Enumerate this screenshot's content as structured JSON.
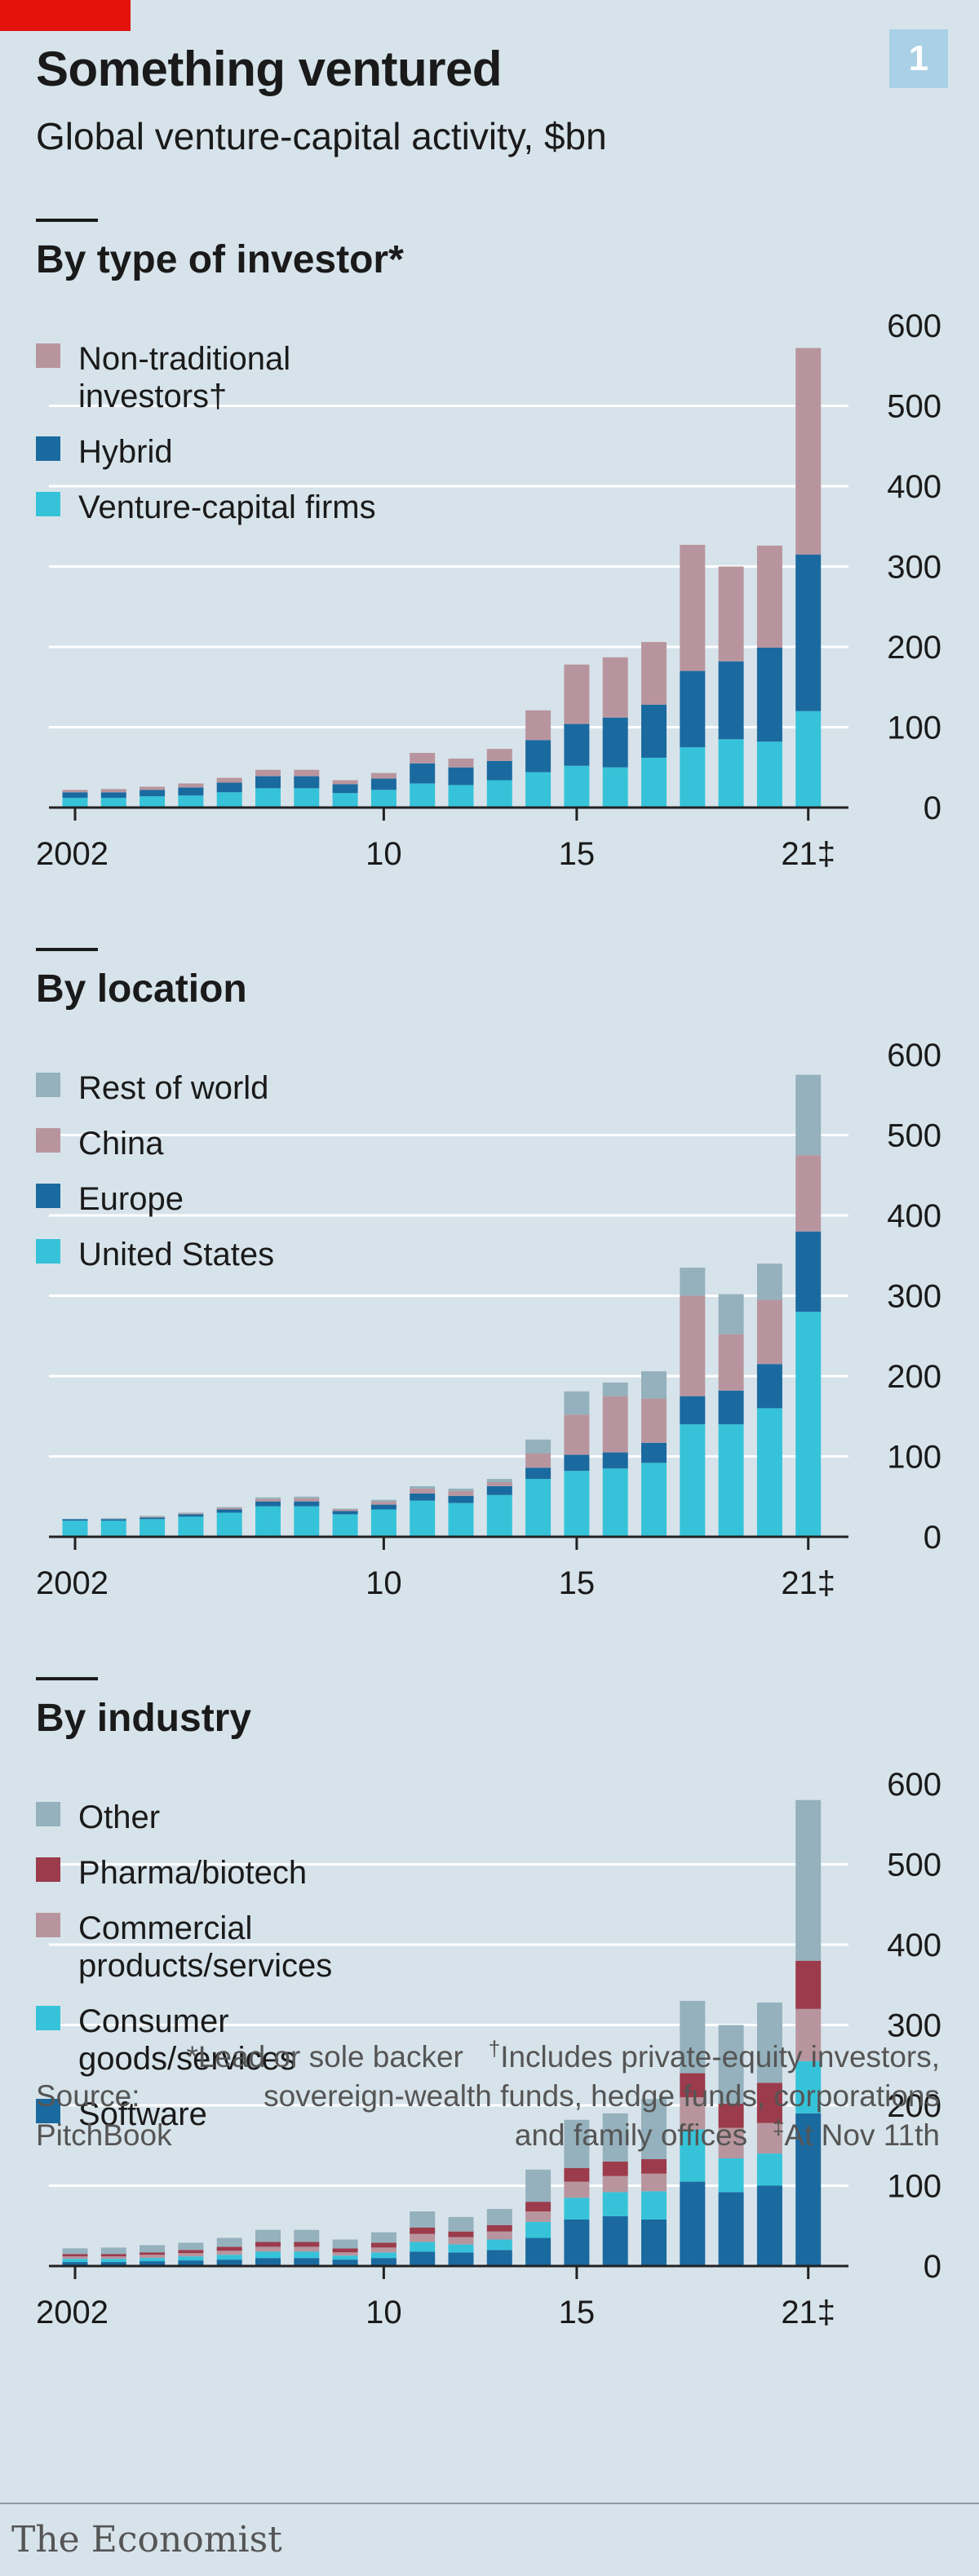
{
  "header": {
    "chart_number": "1",
    "title": "Something ventured",
    "subtitle": "Global venture-capital activity, $bn"
  },
  "footnotes": {
    "lead_backer": "*Lead or sole backer",
    "dagger_mark": "†",
    "includes_line1": "Includes private-equity investors,",
    "includes_line2": "sovereign-wealth funds, hedge funds, corporations",
    "includes_line3": "and family offices",
    "ddagger_mark": "‡",
    "as_of": "At Nov 11th",
    "source_label": "Source:",
    "source_name": "PitchBook"
  },
  "brand": "The Economist",
  "colors": {
    "light_blue": "#36c3d9",
    "dark_blue": "#1a6aa0",
    "mauve": "#b8959e",
    "grey_blue": "#94b1bd",
    "crimson": "#9b3b4b",
    "gridline": "#ffffff",
    "axis": "#222222"
  },
  "chart_data": [
    {
      "type": "bar",
      "stacked": true,
      "title": "By type of investor*",
      "ylim": [
        0,
        600
      ],
      "yticks": [
        "0",
        "100",
        "200",
        "300",
        "400",
        "500",
        "600"
      ],
      "xticks": [
        {
          "year": 2002,
          "label": "2002"
        },
        {
          "year": 2010,
          "label": "10"
        },
        {
          "year": 2015,
          "label": "15"
        },
        {
          "year": 2021,
          "label": "21‡"
        }
      ],
      "categories": [
        2002,
        2003,
        2004,
        2005,
        2006,
        2007,
        2008,
        2009,
        2010,
        2011,
        2012,
        2013,
        2014,
        2015,
        2016,
        2017,
        2018,
        2019,
        2020,
        2021
      ],
      "series": [
        {
          "name": "Venture-capital firms",
          "legend": [
            "Venture-capital firms"
          ],
          "color": "#36c3d9",
          "values": [
            12,
            12,
            14,
            15,
            19,
            24,
            24,
            18,
            22,
            30,
            28,
            34,
            44,
            52,
            50,
            62,
            75,
            85,
            82,
            120
          ]
        },
        {
          "name": "Hybrid",
          "legend": [
            "Hybrid"
          ],
          "color": "#1a6aa0",
          "values": [
            7,
            7,
            8,
            10,
            12,
            15,
            15,
            11,
            14,
            25,
            22,
            24,
            40,
            52,
            62,
            66,
            95,
            97,
            117,
            195
          ]
        },
        {
          "name": "Non-traditional investors†",
          "legend": [
            "Non-traditional",
            "investors†"
          ],
          "color": "#b8959e",
          "values": [
            3,
            4,
            4,
            5,
            6,
            8,
            8,
            5,
            7,
            13,
            11,
            15,
            37,
            74,
            75,
            78,
            157,
            118,
            127,
            257
          ]
        }
      ]
    },
    {
      "type": "bar",
      "stacked": true,
      "title": "By location",
      "ylim": [
        0,
        600
      ],
      "yticks": [
        "0",
        "100",
        "200",
        "300",
        "400",
        "500",
        "600"
      ],
      "xticks": [
        {
          "year": 2002,
          "label": "2002"
        },
        {
          "year": 2010,
          "label": "10"
        },
        {
          "year": 2015,
          "label": "15"
        },
        {
          "year": 2021,
          "label": "21‡"
        }
      ],
      "categories": [
        2002,
        2003,
        2004,
        2005,
        2006,
        2007,
        2008,
        2009,
        2010,
        2011,
        2012,
        2013,
        2014,
        2015,
        2016,
        2017,
        2018,
        2019,
        2020,
        2021
      ],
      "series": [
        {
          "name": "United States",
          "legend": [
            "United States"
          ],
          "color": "#36c3d9",
          "values": [
            20,
            20,
            22,
            25,
            30,
            38,
            38,
            28,
            34,
            45,
            42,
            52,
            72,
            82,
            85,
            92,
            140,
            140,
            160,
            280
          ]
        },
        {
          "name": "Europe",
          "legend": [
            "Europe"
          ],
          "color": "#1a6aa0",
          "values": [
            2,
            2,
            2,
            3,
            4,
            6,
            6,
            4,
            6,
            9,
            9,
            11,
            14,
            20,
            20,
            25,
            35,
            42,
            55,
            100
          ]
        },
        {
          "name": "China",
          "legend": [
            "China"
          ],
          "color": "#b8959e",
          "values": [
            0,
            0,
            1,
            1,
            2,
            3,
            4,
            2,
            4,
            6,
            6,
            5,
            18,
            50,
            70,
            55,
            125,
            70,
            80,
            95
          ]
        },
        {
          "name": "Rest of world",
          "legend": [
            "Rest of world"
          ],
          "color": "#94b1bd",
          "values": [
            0,
            1,
            1,
            1,
            1,
            2,
            2,
            1,
            2,
            3,
            3,
            4,
            17,
            29,
            17,
            34,
            35,
            50,
            45,
            100
          ]
        }
      ]
    },
    {
      "type": "bar",
      "stacked": true,
      "title": "By industry",
      "ylim": [
        0,
        600
      ],
      "yticks": [
        "0",
        "100",
        "200",
        "300",
        "400",
        "500",
        "600"
      ],
      "xticks": [
        {
          "year": 2002,
          "label": "2002"
        },
        {
          "year": 2010,
          "label": "10"
        },
        {
          "year": 2015,
          "label": "15"
        },
        {
          "year": 2021,
          "label": "21‡"
        }
      ],
      "categories": [
        2002,
        2003,
        2004,
        2005,
        2006,
        2007,
        2008,
        2009,
        2010,
        2011,
        2012,
        2013,
        2014,
        2015,
        2016,
        2017,
        2018,
        2019,
        2020,
        2021
      ],
      "series": [
        {
          "name": "Software",
          "legend": [
            "Software"
          ],
          "color": "#1a6aa0",
          "values": [
            5,
            5,
            6,
            7,
            8,
            10,
            10,
            8,
            10,
            18,
            17,
            20,
            35,
            58,
            62,
            58,
            105,
            92,
            100,
            190
          ]
        },
        {
          "name": "Consumer goods/services",
          "legend": [
            "Consumer",
            "goods/services"
          ],
          "color": "#36c3d9",
          "values": [
            4,
            4,
            4,
            5,
            6,
            8,
            8,
            5,
            7,
            12,
            10,
            13,
            20,
            27,
            30,
            35,
            65,
            42,
            40,
            65
          ]
        },
        {
          "name": "Commercial products/services",
          "legend": [
            "Commercial",
            "products/services"
          ],
          "color": "#b8959e",
          "values": [
            3,
            3,
            4,
            4,
            5,
            6,
            6,
            4,
            6,
            10,
            9,
            10,
            13,
            20,
            20,
            22,
            40,
            38,
            38,
            65
          ]
        },
        {
          "name": "Pharma/biotech",
          "legend": [
            "Pharma/biotech"
          ],
          "color": "#9b3b4b",
          "values": [
            3,
            3,
            3,
            4,
            5,
            6,
            6,
            5,
            6,
            8,
            7,
            8,
            12,
            17,
            18,
            18,
            30,
            30,
            50,
            60
          ]
        },
        {
          "name": "Other",
          "legend": [
            "Other"
          ],
          "color": "#94b1bd",
          "values": [
            7,
            8,
            9,
            9,
            11,
            15,
            15,
            11,
            13,
            20,
            18,
            20,
            40,
            60,
            60,
            75,
            90,
            98,
            100,
            200
          ]
        }
      ]
    }
  ]
}
